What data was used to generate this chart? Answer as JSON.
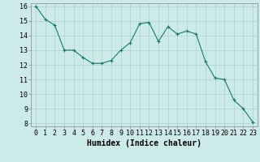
{
  "x": [
    0,
    1,
    2,
    3,
    4,
    5,
    6,
    7,
    8,
    9,
    10,
    11,
    12,
    13,
    14,
    15,
    16,
    17,
    18,
    19,
    20,
    21,
    22,
    23
  ],
  "y": [
    16.0,
    15.1,
    14.7,
    13.0,
    13.0,
    12.5,
    12.1,
    12.1,
    12.3,
    13.0,
    13.5,
    14.8,
    14.9,
    13.6,
    14.6,
    14.1,
    14.3,
    14.1,
    12.2,
    11.1,
    11.0,
    9.6,
    9.0,
    8.1
  ],
  "line_color": "#1a7a6a",
  "marker_color": "#1a7a6a",
  "bg_color": "#cceae7",
  "grid_color": "#aad4cf",
  "xlabel": "Humidex (Indice chaleur)",
  "ylim": [
    7.8,
    16.2
  ],
  "xlim": [
    -0.5,
    23.5
  ],
  "yticks": [
    8,
    9,
    10,
    11,
    12,
    13,
    14,
    15,
    16
  ],
  "xticks": [
    0,
    1,
    2,
    3,
    4,
    5,
    6,
    7,
    8,
    9,
    10,
    11,
    12,
    13,
    14,
    15,
    16,
    17,
    18,
    19,
    20,
    21,
    22,
    23
  ],
  "xlabel_fontsize": 7,
  "tick_fontsize": 6
}
